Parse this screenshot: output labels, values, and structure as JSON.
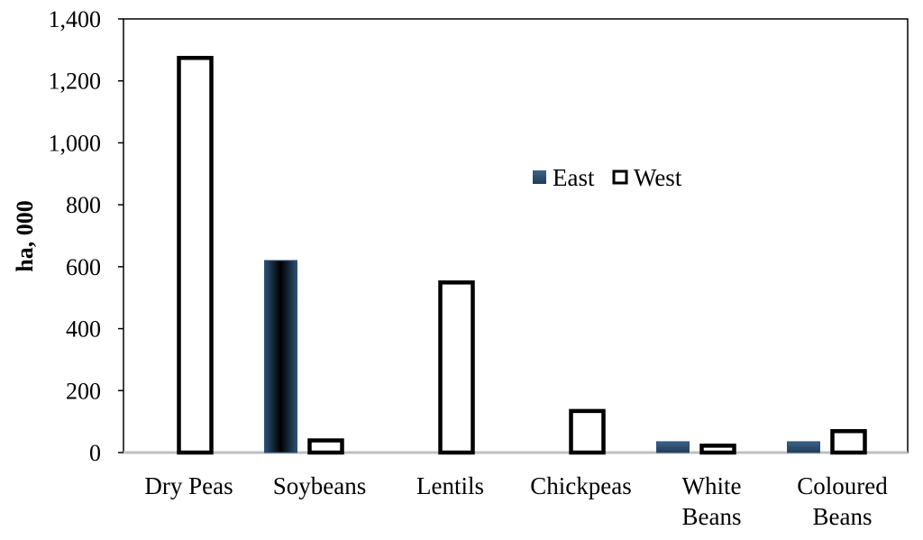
{
  "chart_data": {
    "type": "bar",
    "title": "",
    "xlabel": "",
    "ylabel": "ha, 000",
    "ylim": [
      0,
      1400
    ],
    "yticks": [
      0,
      200,
      400,
      600,
      800,
      1000,
      1200,
      1400
    ],
    "ytick_labels": [
      "0",
      "200",
      "400",
      "600",
      "800",
      "1,000",
      "1,200",
      "1,400"
    ],
    "categories": [
      [
        "Dry Peas"
      ],
      [
        "Soybeans"
      ],
      [
        "Lentils"
      ],
      [
        "Chickpeas"
      ],
      [
        "White",
        "Beans"
      ],
      [
        "Coloured",
        "Beans"
      ]
    ],
    "series": [
      {
        "name": "East",
        "values": [
          0,
          620,
          0,
          0,
          35,
          35
        ],
        "color": "#1f3b57"
      },
      {
        "name": "West",
        "values": [
          1280,
          45,
          555,
          140,
          28,
          75
        ],
        "color": "#ffffff"
      }
    ],
    "grid": false,
    "legend_position": "center-right"
  }
}
